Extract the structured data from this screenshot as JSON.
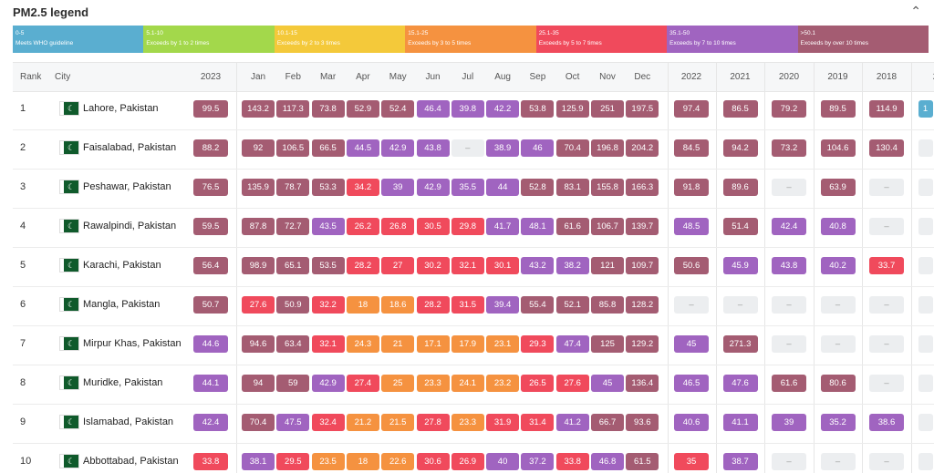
{
  "header": {
    "title": "PM2.5 legend",
    "collapse_icon": "chevron-up-icon"
  },
  "legend": [
    {
      "range": "0-5",
      "desc": "Meets WHO guideline",
      "color": "#5aaed0"
    },
    {
      "range": "5.1-10",
      "desc": "Exceeds by 1 to 2 times",
      "color": "#a3d84b"
    },
    {
      "range": "10.1-15",
      "desc": "Exceeds by 2 to 3 times",
      "color": "#f4c93a"
    },
    {
      "range": "15.1-25",
      "desc": "Exceeds by 3 to 5 times",
      "color": "#f59240"
    },
    {
      "range": "25.1-35",
      "desc": "Exceeds by 5 to 7 times",
      "color": "#f04a5c"
    },
    {
      "range": "35.1-50",
      "desc": "Exceeds by 7 to 10 times",
      "color": "#a064c0"
    },
    {
      "range": ">50.1",
      "desc": "Exceeds by over 10 times",
      "color": "#a45c72"
    }
  ],
  "columns": {
    "rank": "Rank",
    "city": "City",
    "y2023": "2023",
    "months": [
      "Jan",
      "Feb",
      "Mar",
      "Apr",
      "May",
      "Jun",
      "Jul",
      "Aug",
      "Sep",
      "Oct",
      "Nov",
      "Dec"
    ],
    "years": [
      "2022",
      "2021",
      "2020",
      "2019",
      "2018",
      "2"
    ]
  },
  "rows": [
    {
      "rank": "1",
      "city": "Lahore, Pakistan",
      "y2023": "99.5",
      "months": [
        "143.2",
        "117.3",
        "73.8",
        "52.9",
        "52.4",
        "46.4",
        "39.8",
        "42.2",
        "53.8",
        "125.9",
        "251",
        "197.5"
      ],
      "years": [
        "97.4",
        "86.5",
        "79.2",
        "89.5",
        "114.9",
        "1"
      ]
    },
    {
      "rank": "2",
      "city": "Faisalabad, Pakistan",
      "y2023": "88.2",
      "months": [
        "92",
        "106.5",
        "66.5",
        "44.5",
        "42.9",
        "43.8",
        "–",
        "38.9",
        "46",
        "70.4",
        "196.8",
        "204.2"
      ],
      "years": [
        "84.5",
        "94.2",
        "73.2",
        "104.6",
        "130.4",
        ""
      ]
    },
    {
      "rank": "3",
      "city": "Peshawar, Pakistan",
      "y2023": "76.5",
      "months": [
        "135.9",
        "78.7",
        "53.3",
        "34.2",
        "39",
        "42.9",
        "35.5",
        "44",
        "52.8",
        "83.1",
        "155.8",
        "166.3"
      ],
      "years": [
        "91.8",
        "89.6",
        "–",
        "63.9",
        "–",
        ""
      ]
    },
    {
      "rank": "4",
      "city": "Rawalpindi, Pakistan",
      "y2023": "59.5",
      "months": [
        "87.8",
        "72.7",
        "43.5",
        "26.2",
        "26.8",
        "30.5",
        "29.8",
        "41.7",
        "48.1",
        "61.6",
        "106.7",
        "139.7"
      ],
      "years": [
        "48.5",
        "51.4",
        "42.4",
        "40.8",
        "–",
        ""
      ]
    },
    {
      "rank": "5",
      "city": "Karachi, Pakistan",
      "y2023": "56.4",
      "months": [
        "98.9",
        "65.1",
        "53.5",
        "28.2",
        "27",
        "30.2",
        "32.1",
        "30.1",
        "43.2",
        "38.2",
        "121",
        "109.7"
      ],
      "years": [
        "50.6",
        "45.9",
        "43.8",
        "40.2",
        "33.7",
        ""
      ]
    },
    {
      "rank": "6",
      "city": "Mangla, Pakistan",
      "y2023": "50.7",
      "months": [
        "27.6",
        "50.9",
        "32.2",
        "18",
        "18.6",
        "28.2",
        "31.5",
        "39.4",
        "55.4",
        "52.1",
        "85.8",
        "128.2"
      ],
      "years": [
        "–",
        "–",
        "–",
        "–",
        "–",
        ""
      ]
    },
    {
      "rank": "7",
      "city": "Mirpur Khas, Pakistan",
      "y2023": "44.6",
      "months": [
        "94.6",
        "63.4",
        "32.1",
        "24.3",
        "21",
        "17.1",
        "17.9",
        "23.1",
        "29.3",
        "47.4",
        "125",
        "129.2"
      ],
      "years": [
        "45",
        "271.3",
        "–",
        "–",
        "–",
        ""
      ]
    },
    {
      "rank": "8",
      "city": "Muridke, Pakistan",
      "y2023": "44.1",
      "months": [
        "94",
        "59",
        "42.9",
        "27.4",
        "25",
        "23.3",
        "24.1",
        "23.2",
        "26.5",
        "27.6",
        "45",
        "136.4"
      ],
      "years": [
        "46.5",
        "47.6",
        "61.6",
        "80.6",
        "–",
        ""
      ]
    },
    {
      "rank": "9",
      "city": "Islamabad, Pakistan",
      "y2023": "42.4",
      "months": [
        "70.4",
        "47.5",
        "32.4",
        "21.2",
        "21.5",
        "27.8",
        "23.3",
        "31.9",
        "31.4",
        "41.2",
        "66.7",
        "93.6"
      ],
      "years": [
        "40.6",
        "41.1",
        "39",
        "35.2",
        "38.6",
        ""
      ]
    },
    {
      "rank": "10",
      "city": "Abbottabad, Pakistan",
      "y2023": "33.8",
      "months": [
        "38.1",
        "29.5",
        "23.5",
        "18",
        "22.6",
        "30.6",
        "26.9",
        "40",
        "37.2",
        "33.8",
        "46.8",
        "61.5"
      ],
      "years": [
        "35",
        "38.7",
        "–",
        "–",
        "–",
        ""
      ]
    }
  ]
}
